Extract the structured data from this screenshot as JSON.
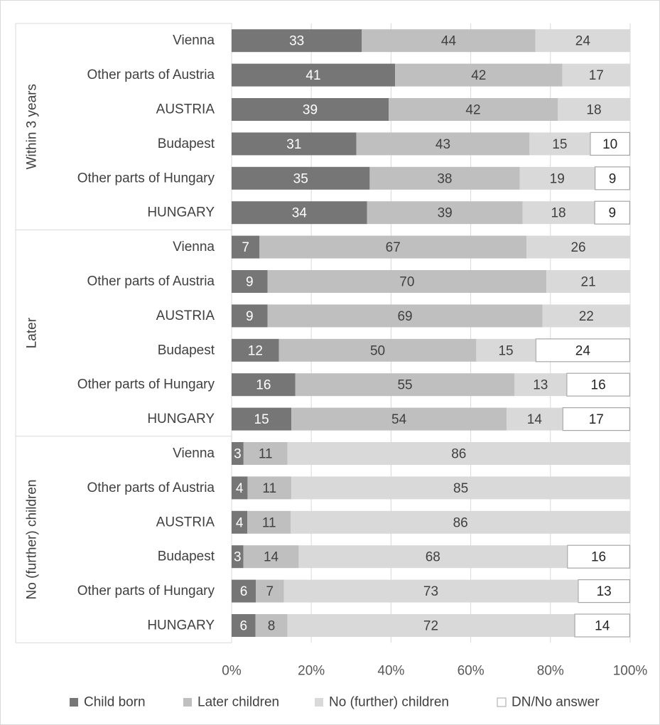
{
  "chart_data": {
    "type": "bar",
    "orientation": "horizontal",
    "stacking": "percent",
    "groups": [
      {
        "label": "Within 3 years",
        "categories": [
          "Vienna",
          "Other parts of Austria",
          "AUSTRIA",
          "Budapest",
          "Other parts of Hungary",
          "HUNGARY"
        ]
      },
      {
        "label": "Later",
        "categories": [
          "Vienna",
          "Other parts of Austria",
          "AUSTRIA",
          "Budapest",
          "Other parts of Hungary",
          "HUNGARY"
        ]
      },
      {
        "label": "No (further) children",
        "categories": [
          "Vienna",
          "Other parts of Austria",
          "AUSTRIA",
          "Budapest",
          "Other parts of Hungary",
          "HUNGARY"
        ]
      }
    ],
    "series": [
      {
        "name": "Child born",
        "color": "#767676",
        "label_color": "#ffffff",
        "values": [
          33,
          41,
          39,
          31,
          35,
          34,
          7,
          9,
          9,
          12,
          16,
          15,
          3,
          4,
          4,
          3,
          6,
          6
        ]
      },
      {
        "name": "Later children",
        "color": "#bfbfbf",
        "label_color": "#404040",
        "values": [
          44,
          42,
          42,
          43,
          38,
          39,
          67,
          70,
          69,
          50,
          55,
          54,
          11,
          11,
          11,
          14,
          7,
          8
        ]
      },
      {
        "name": "No (further) children",
        "color": "#d9d9d9",
        "label_color": "#404040",
        "values": [
          24,
          17,
          18,
          15,
          19,
          18,
          26,
          21,
          22,
          15,
          13,
          14,
          86,
          85,
          86,
          68,
          73,
          72
        ]
      },
      {
        "name": "DN/No answer",
        "color": "#ffffff",
        "border": "#a6a6a6",
        "label_color": "#262626",
        "values": [
          null,
          null,
          null,
          10,
          9,
          9,
          null,
          null,
          null,
          24,
          16,
          17,
          null,
          null,
          null,
          16,
          13,
          14
        ]
      }
    ],
    "x_ticks": [
      "0%",
      "20%",
      "40%",
      "60%",
      "80%",
      "100%"
    ],
    "xlim": [
      0,
      100
    ],
    "grid": true,
    "legend": "bottom"
  }
}
